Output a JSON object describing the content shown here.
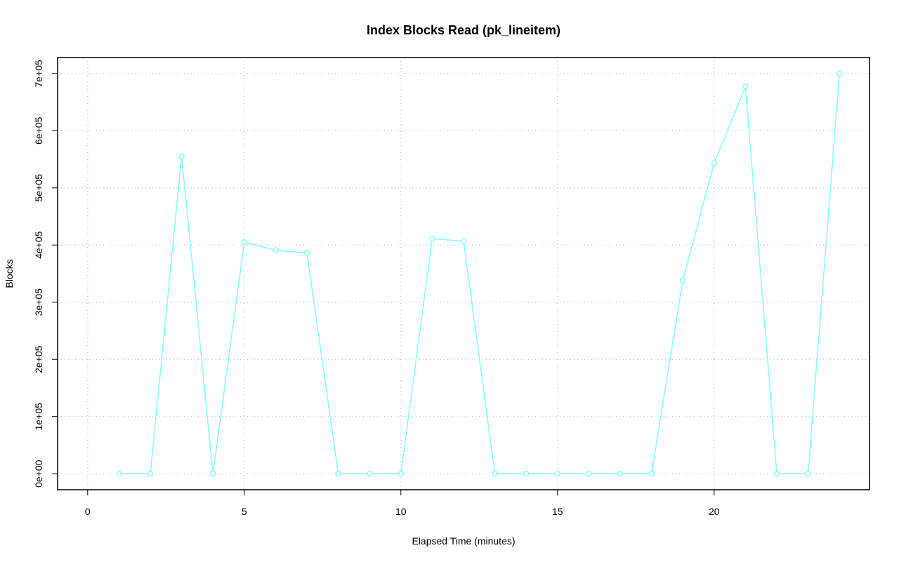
{
  "chart_data": {
    "type": "line",
    "title": "Index Blocks Read (pk_lineitem)",
    "x_label": "Elapsed Time (minutes)",
    "y_label": "Blocks",
    "series": [
      {
        "name": "pk_lineitem",
        "color": "#80ffff",
        "x": [
          1,
          2,
          3,
          4,
          5,
          6,
          7,
          8,
          9,
          10,
          11,
          12,
          13,
          14,
          15,
          16,
          17,
          18,
          19,
          20,
          21,
          22,
          23,
          24
        ],
        "values": [
          0,
          0,
          555000,
          0,
          405000,
          391000,
          386000,
          0,
          0,
          0,
          411000,
          407000,
          0,
          0,
          0,
          0,
          0,
          0,
          338000,
          543000,
          677000,
          0,
          0,
          700000
        ]
      }
    ],
    "xlim": [
      -0.96,
      24.96
    ],
    "xticks": [
      0,
      5,
      10,
      15,
      20
    ],
    "ylim": [
      -28000,
      728000
    ],
    "yticks": [
      {
        "value": 0,
        "label": "0e+00"
      },
      {
        "value": 100000,
        "label": "1e+05"
      },
      {
        "value": 200000,
        "label": "2e+05"
      },
      {
        "value": 300000,
        "label": "3e+05"
      },
      {
        "value": 400000,
        "label": "4e+05"
      },
      {
        "value": 500000,
        "label": "5e+05"
      },
      {
        "value": 600000,
        "label": "6e+05"
      },
      {
        "value": 700000,
        "label": "7e+05"
      }
    ],
    "grid": true
  }
}
